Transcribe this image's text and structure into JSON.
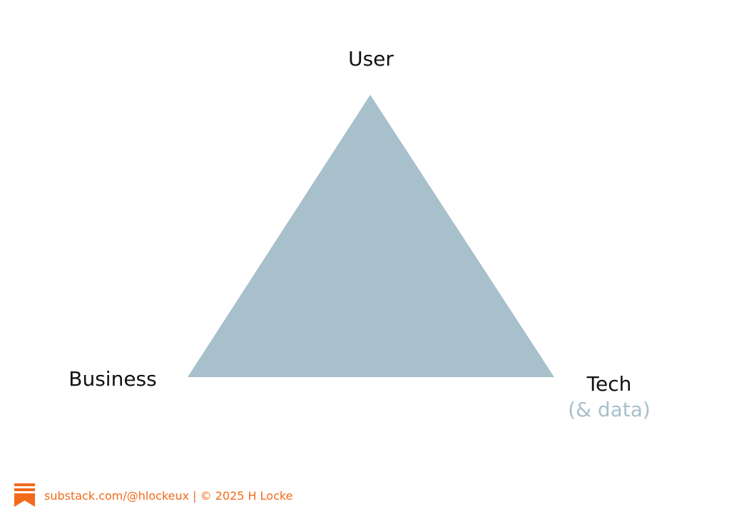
{
  "nodes": [
    {
      "label": "User"
    },
    {
      "label": "Business"
    },
    {
      "label": "Tech",
      "sublabel": "(& data)"
    }
  ],
  "footer": {
    "text": "substack.com/@hlockeux | © 2025 H Locke"
  }
}
